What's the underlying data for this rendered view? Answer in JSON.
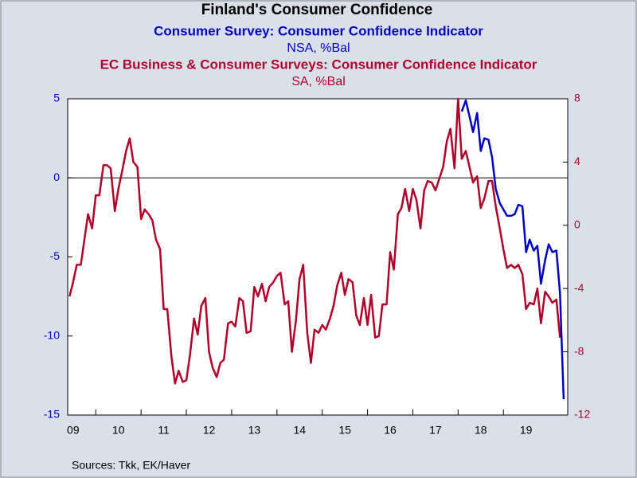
{
  "chart_data": {
    "type": "line",
    "title": "Finland's Consumer Confidence",
    "source": "Sources:  Tkk, EK/Haver",
    "series": [
      {
        "name": "Consumer Survey: Consumer Confidence Indicator",
        "unit": "NSA, %Bal",
        "color": "#0000c0",
        "axis": "y",
        "x": [
          2018.08,
          2018.17,
          2018.25,
          2018.33,
          2018.42,
          2018.5,
          2018.58,
          2018.67,
          2018.75,
          2018.83,
          2018.92,
          2019.0,
          2019.08,
          2019.17,
          2019.25,
          2019.33,
          2019.42,
          2019.5,
          2019.58,
          2019.67,
          2019.75,
          2019.83,
          2019.92,
          2020.0,
          2020.08,
          2020.17,
          2020.25,
          2020.33
        ],
        "values": [
          4.2,
          4.9,
          3.9,
          2.9,
          4.1,
          1.7,
          2.5,
          2.4,
          1.3,
          -0.7,
          -1.6,
          -2.0,
          -2.4,
          -2.4,
          -2.3,
          -1.7,
          -1.8,
          -4.7,
          -3.9,
          -4.6,
          -4.3,
          -6.7,
          -5.2,
          -4.2,
          -4.7,
          -4.6,
          -7.3,
          -14.0
        ]
      },
      {
        "name": "EC Business & Consumer Surveys: Consumer Confidence Indicator",
        "unit": "SA, %Bal",
        "color": "#b0002a",
        "axis": "y2",
        "x": [
          2009.42,
          2009.5,
          2009.58,
          2009.67,
          2009.75,
          2009.83,
          2009.92,
          2010.0,
          2010.08,
          2010.17,
          2010.25,
          2010.33,
          2010.42,
          2010.5,
          2010.58,
          2010.67,
          2010.75,
          2010.83,
          2010.92,
          2011.0,
          2011.08,
          2011.17,
          2011.25,
          2011.33,
          2011.42,
          2011.5,
          2011.58,
          2011.67,
          2011.75,
          2011.83,
          2011.92,
          2012.0,
          2012.08,
          2012.17,
          2012.25,
          2012.33,
          2012.42,
          2012.5,
          2012.58,
          2012.67,
          2012.75,
          2012.83,
          2012.92,
          2013.0,
          2013.08,
          2013.17,
          2013.25,
          2013.33,
          2013.42,
          2013.5,
          2013.58,
          2013.67,
          2013.75,
          2013.83,
          2013.92,
          2014.0,
          2014.08,
          2014.17,
          2014.25,
          2014.33,
          2014.42,
          2014.5,
          2014.58,
          2014.67,
          2014.75,
          2014.83,
          2014.92,
          2015.0,
          2015.08,
          2015.17,
          2015.25,
          2015.33,
          2015.42,
          2015.5,
          2015.58,
          2015.67,
          2015.75,
          2015.83,
          2015.92,
          2016.0,
          2016.08,
          2016.17,
          2016.25,
          2016.33,
          2016.42,
          2016.5,
          2016.58,
          2016.67,
          2016.75,
          2016.83,
          2016.92,
          2017.0,
          2017.08,
          2017.17,
          2017.25,
          2017.33,
          2017.42,
          2017.5,
          2017.58,
          2017.67,
          2017.75,
          2017.83,
          2017.92,
          2018.0,
          2018.08,
          2018.17,
          2018.25,
          2018.33,
          2018.42,
          2018.5,
          2018.58,
          2018.67,
          2018.75,
          2018.83,
          2018.92,
          2019.0,
          2019.08,
          2019.17,
          2019.25,
          2019.33,
          2019.42,
          2019.5,
          2019.58,
          2019.67,
          2019.75,
          2019.83,
          2019.92,
          2020.0,
          2020.08,
          2020.17,
          2020.25
        ],
        "values": [
          -4.5,
          -3.6,
          -2.5,
          -2.5,
          -0.9,
          0.7,
          -0.2,
          1.9,
          1.9,
          3.8,
          3.8,
          3.6,
          0.9,
          2.3,
          3.4,
          4.7,
          5.5,
          4.0,
          3.7,
          0.4,
          1.0,
          0.7,
          0.3,
          -0.9,
          -1.5,
          -5.3,
          -5.3,
          -8.3,
          -10.0,
          -9.2,
          -9.9,
          -9.8,
          -8.2,
          -5.9,
          -6.9,
          -5.1,
          -4.6,
          -8.0,
          -9.0,
          -9.6,
          -8.7,
          -8.5,
          -6.2,
          -6.1,
          -6.4,
          -4.6,
          -4.8,
          -6.8,
          -6.7,
          -3.9,
          -4.5,
          -3.7,
          -4.8,
          -3.9,
          -3.6,
          -3.2,
          -3.0,
          -5.0,
          -4.8,
          -8.0,
          -6.0,
          -3.4,
          -2.5,
          -6.8,
          -8.7,
          -6.6,
          -6.8,
          -6.3,
          -6.6,
          -5.9,
          -5.1,
          -3.8,
          -3.0,
          -4.4,
          -3.4,
          -3.6,
          -5.7,
          -6.3,
          -4.6,
          -6.3,
          -4.4,
          -7.1,
          -7.0,
          -5.0,
          -5.0,
          -1.7,
          -2.8,
          0.7,
          1.1,
          2.3,
          0.9,
          2.3,
          1.6,
          -0.2,
          2.2,
          2.8,
          2.7,
          2.2,
          2.9,
          3.7,
          5.3,
          6.1,
          3.6,
          8.0,
          4.2,
          4.7,
          3.7,
          2.7,
          3.1,
          1.1,
          1.7,
          2.8,
          2.8,
          1.2,
          -0.2,
          -1.5,
          -2.7,
          -2.5,
          -2.7,
          -2.5,
          -3.1,
          -5.3,
          -4.9,
          -5.0,
          -4.0,
          -6.2,
          -4.2,
          -4.5,
          -4.9,
          -4.7,
          -7.1
        ]
      }
    ],
    "xlim": [
      2009.38,
      2020.42
    ],
    "xticks": [
      {
        "value": 2009.5,
        "label": "09"
      },
      {
        "value": 2010.5,
        "label": "10"
      },
      {
        "value": 2011.5,
        "label": "11"
      },
      {
        "value": 2012.5,
        "label": "12"
      },
      {
        "value": 2013.5,
        "label": "13"
      },
      {
        "value": 2014.5,
        "label": "14"
      },
      {
        "value": 2015.5,
        "label": "15"
      },
      {
        "value": 2016.5,
        "label": "16"
      },
      {
        "value": 2017.5,
        "label": "17"
      },
      {
        "value": 2018.5,
        "label": "18"
      },
      {
        "value": 2019.5,
        "label": "19"
      }
    ],
    "ylim": [
      -15,
      5
    ],
    "yticks": [
      -15,
      -10,
      -5,
      0,
      5
    ],
    "y2lim": [
      -12,
      8
    ],
    "y2ticks": [
      -12,
      -8,
      -4,
      0,
      4,
      8
    ],
    "zero_line": true
  }
}
